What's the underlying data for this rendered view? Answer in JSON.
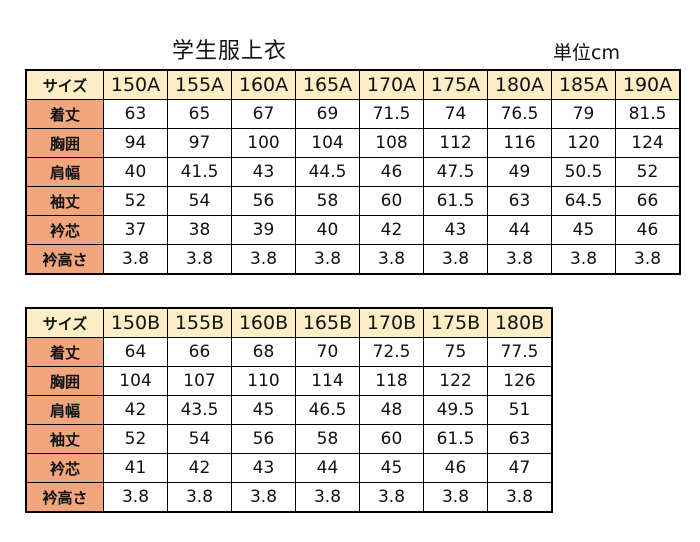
{
  "title": "学生服上衣",
  "unit": "単位cm",
  "corner_label": "サイズ",
  "row_labels": [
    "着丈",
    "胸囲",
    "肩幅",
    "袖丈",
    "衿芯",
    "衿高さ"
  ],
  "table_a": {
    "sizes": [
      "150A",
      "155A",
      "160A",
      "165A",
      "170A",
      "175A",
      "180A",
      "185A",
      "190A"
    ],
    "rows": [
      [
        "63",
        "65",
        "67",
        "69",
        "71.5",
        "74",
        "76.5",
        "79",
        "81.5"
      ],
      [
        "94",
        "97",
        "100",
        "104",
        "108",
        "112",
        "116",
        "120",
        "124"
      ],
      [
        "40",
        "41.5",
        "43",
        "44.5",
        "46",
        "47.5",
        "49",
        "50.5",
        "52"
      ],
      [
        "52",
        "54",
        "56",
        "58",
        "60",
        "61.5",
        "63",
        "64.5",
        "66"
      ],
      [
        "37",
        "38",
        "39",
        "40",
        "42",
        "43",
        "44",
        "45",
        "46"
      ],
      [
        "3.8",
        "3.8",
        "3.8",
        "3.8",
        "3.8",
        "3.8",
        "3.8",
        "3.8",
        "3.8"
      ]
    ]
  },
  "table_b": {
    "sizes": [
      "150B",
      "155B",
      "160B",
      "165B",
      "170B",
      "175B",
      "180B"
    ],
    "rows": [
      [
        "64",
        "66",
        "68",
        "70",
        "72.5",
        "75",
        "77.5"
      ],
      [
        "104",
        "107",
        "110",
        "114",
        "118",
        "122",
        "126"
      ],
      [
        "42",
        "43.5",
        "45",
        "46.5",
        "48",
        "49.5",
        "51"
      ],
      [
        "52",
        "54",
        "56",
        "58",
        "60",
        "61.5",
        "63"
      ],
      [
        "41",
        "42",
        "43",
        "44",
        "45",
        "46",
        "47"
      ],
      [
        "3.8",
        "3.8",
        "3.8",
        "3.8",
        "3.8",
        "3.8",
        "3.8"
      ]
    ]
  },
  "colors": {
    "header_bg": "#fdeec5",
    "label_bg": "#f2a67e"
  }
}
